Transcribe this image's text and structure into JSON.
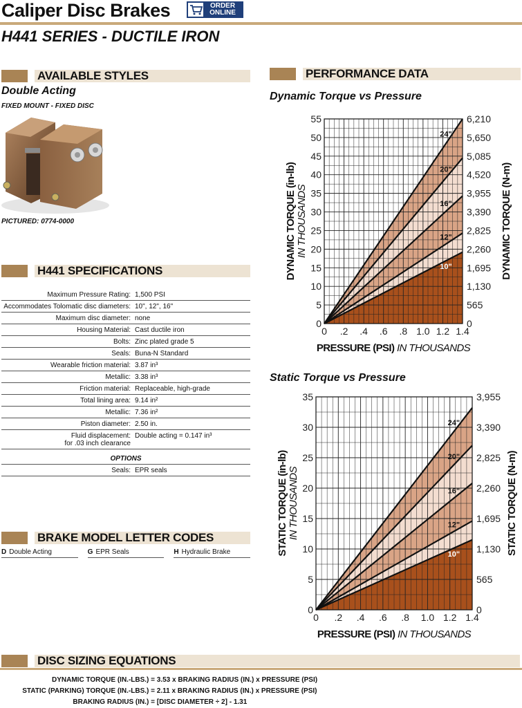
{
  "header": {
    "title": "Caliper Disc Brakes",
    "order_line1": "ORDER",
    "order_line2": "ONLINE",
    "subtitle": "H441 SERIES - DUCTILE IRON"
  },
  "styles": {
    "heading": "AVAILABLE STYLES",
    "name": "Double Acting",
    "mount": "FIXED MOUNT - FIXED DISC",
    "pictured": "PICTURED:  0774-0000"
  },
  "specs": {
    "heading": "H441 SPECIFICATIONS",
    "rows": [
      {
        "k": "Maximum Pressure Rating:",
        "v": "1,500 PSI"
      },
      {
        "k": "Accommodates Tolomatic disc diameters:",
        "v": "10\", 12\", 16\""
      },
      {
        "k": "Maximum disc diameter:",
        "v": "none"
      },
      {
        "k": "Housing Material:",
        "v": "Cast ductile iron"
      },
      {
        "k": "Bolts:",
        "v": "Zinc plated grade 5"
      },
      {
        "k": "Seals:",
        "v": "Buna-N Standard"
      },
      {
        "k": "Wearable friction material:",
        "v": "3.87 in³"
      },
      {
        "k": "Metallic:",
        "v": "3.38 in³"
      },
      {
        "k": "Friction material:",
        "v": "Replaceable, high-grade"
      },
      {
        "k": "Total lining area:",
        "v": "9.14 in²"
      },
      {
        "k": "Metallic:",
        "v": "7.36 in²"
      },
      {
        "k": "Piston diameter:",
        "v": "2.50 in."
      },
      {
        "k": "Fluid displacement:",
        "k2": "for .03 inch clearance",
        "v": "Double acting = 0.147 in³"
      }
    ],
    "options_heading": "OPTIONS",
    "options": [
      {
        "k": "Seals:",
        "v": "EPR seals"
      }
    ]
  },
  "codes": {
    "heading": "BRAKE MODEL LETTER CODES",
    "items": [
      {
        "letter": "D",
        "label": "Double Acting"
      },
      {
        "letter": "G",
        "label": "EPR Seals"
      },
      {
        "letter": "H",
        "label": "Hydraulic Brake"
      }
    ]
  },
  "performance": {
    "heading": "PERFORMANCE DATA"
  },
  "chart_data": [
    {
      "type": "area",
      "title": "Dynamic Torque vs Pressure",
      "xlabel_bold": "PRESSURE (PSI)",
      "xlabel_italic": "IN THOUSANDS",
      "ylabel_bold": "DYNAMIC TORQUE (in-lb)",
      "ylabel_italic": "IN THOUSANDS",
      "ylabel_right": "DYNAMIC TORQUE (N-m)",
      "x_ticks": [
        "0",
        ".2",
        ".4",
        ".6",
        ".8",
        "1.0",
        "1.2",
        "1.4"
      ],
      "y_ticks": [
        "0",
        "5",
        "10",
        "15",
        "20",
        "25",
        "30",
        "35",
        "40",
        "45",
        "50",
        "55"
      ],
      "y2_ticks": [
        "0",
        "565",
        "1,130",
        "1,695",
        "2,260",
        "2,825",
        "3,390",
        "3,955",
        "4,520",
        "5,085",
        "5,650",
        "6,210"
      ],
      "xlim": [
        0,
        1.4
      ],
      "ylim": [
        0,
        55
      ],
      "series": [
        {
          "name": "10\"",
          "x": [
            0,
            1.4
          ],
          "y": [
            0,
            19.2
          ],
          "color": "#a8501c",
          "label_color": "#ffffff"
        },
        {
          "name": "12\"",
          "x": [
            0,
            1.4
          ],
          "y": [
            0,
            24.3
          ],
          "color": "#f3ddd0",
          "label_color": "#111111"
        },
        {
          "name": "16\"",
          "x": [
            0,
            1.4
          ],
          "y": [
            0,
            34.3
          ],
          "color": "#d9a486",
          "label_color": "#111111"
        },
        {
          "name": "20\"",
          "x": [
            0,
            1.4
          ],
          "y": [
            0,
            44.5
          ],
          "color": "#f3ddd0",
          "label_color": "#111111"
        },
        {
          "name": "24\"",
          "x": [
            0,
            1.4
          ],
          "y": [
            0,
            55
          ],
          "color": "#d9a486",
          "label_color": "#111111"
        }
      ]
    },
    {
      "type": "area",
      "title": "Static Torque vs Pressure",
      "xlabel_bold": "PRESSURE (PSI)",
      "xlabel_italic": "IN THOUSANDS",
      "ylabel_bold": "STATIC TORQUE (in-lb)",
      "ylabel_italic": "IN THOUSANDS",
      "ylabel_right": "STATIC TORQUE (N-m)",
      "x_ticks": [
        "0",
        ".2",
        ".4",
        ".6",
        ".8",
        "1.0",
        "1.2",
        "1.4"
      ],
      "y_ticks": [
        "0",
        "5",
        "10",
        "15",
        "20",
        "25",
        "30",
        "35"
      ],
      "y2_ticks": [
        "0",
        "565",
        "1,130",
        "1,695",
        "2,260",
        "2,825",
        "3,390",
        "3,955"
      ],
      "xlim": [
        0,
        1.4
      ],
      "ylim": [
        0,
        35
      ],
      "series": [
        {
          "name": "10\"",
          "x": [
            0,
            1.4
          ],
          "y": [
            0,
            11.5
          ],
          "color": "#a8501c",
          "label_color": "#ffffff"
        },
        {
          "name": "12\"",
          "x": [
            0,
            1.4
          ],
          "y": [
            0,
            14.6
          ],
          "color": "#f3ddd0",
          "label_color": "#111111"
        },
        {
          "name": "16\"",
          "x": [
            0,
            1.4
          ],
          "y": [
            0,
            20.8
          ],
          "color": "#d9a486",
          "label_color": "#111111"
        },
        {
          "name": "20\"",
          "x": [
            0,
            1.4
          ],
          "y": [
            0,
            27.0
          ],
          "color": "#f3ddd0",
          "label_color": "#111111"
        },
        {
          "name": "24\"",
          "x": [
            0,
            1.4
          ],
          "y": [
            0,
            33.2
          ],
          "color": "#d9a486",
          "label_color": "#111111"
        }
      ]
    }
  ],
  "equations": {
    "heading": "DISC SIZING EQUATIONS",
    "rows": [
      {
        "k": "DYNAMIC TORQUE (IN.-LBS.) =",
        "v": "3.53 x BRAKING RADIUS (IN.) x PRESSURE (PSI)"
      },
      {
        "k": "STATIC (PARKING) TORQUE (IN.-LBS.) =",
        "v": "2.11 x BRAKING RADIUS (IN.) x PRESSURE (PSI)"
      },
      {
        "k": "BRAKING RADIUS (IN.) =",
        "v": "[DISC DIAMETER ÷ 2] - 1.31"
      }
    ]
  }
}
